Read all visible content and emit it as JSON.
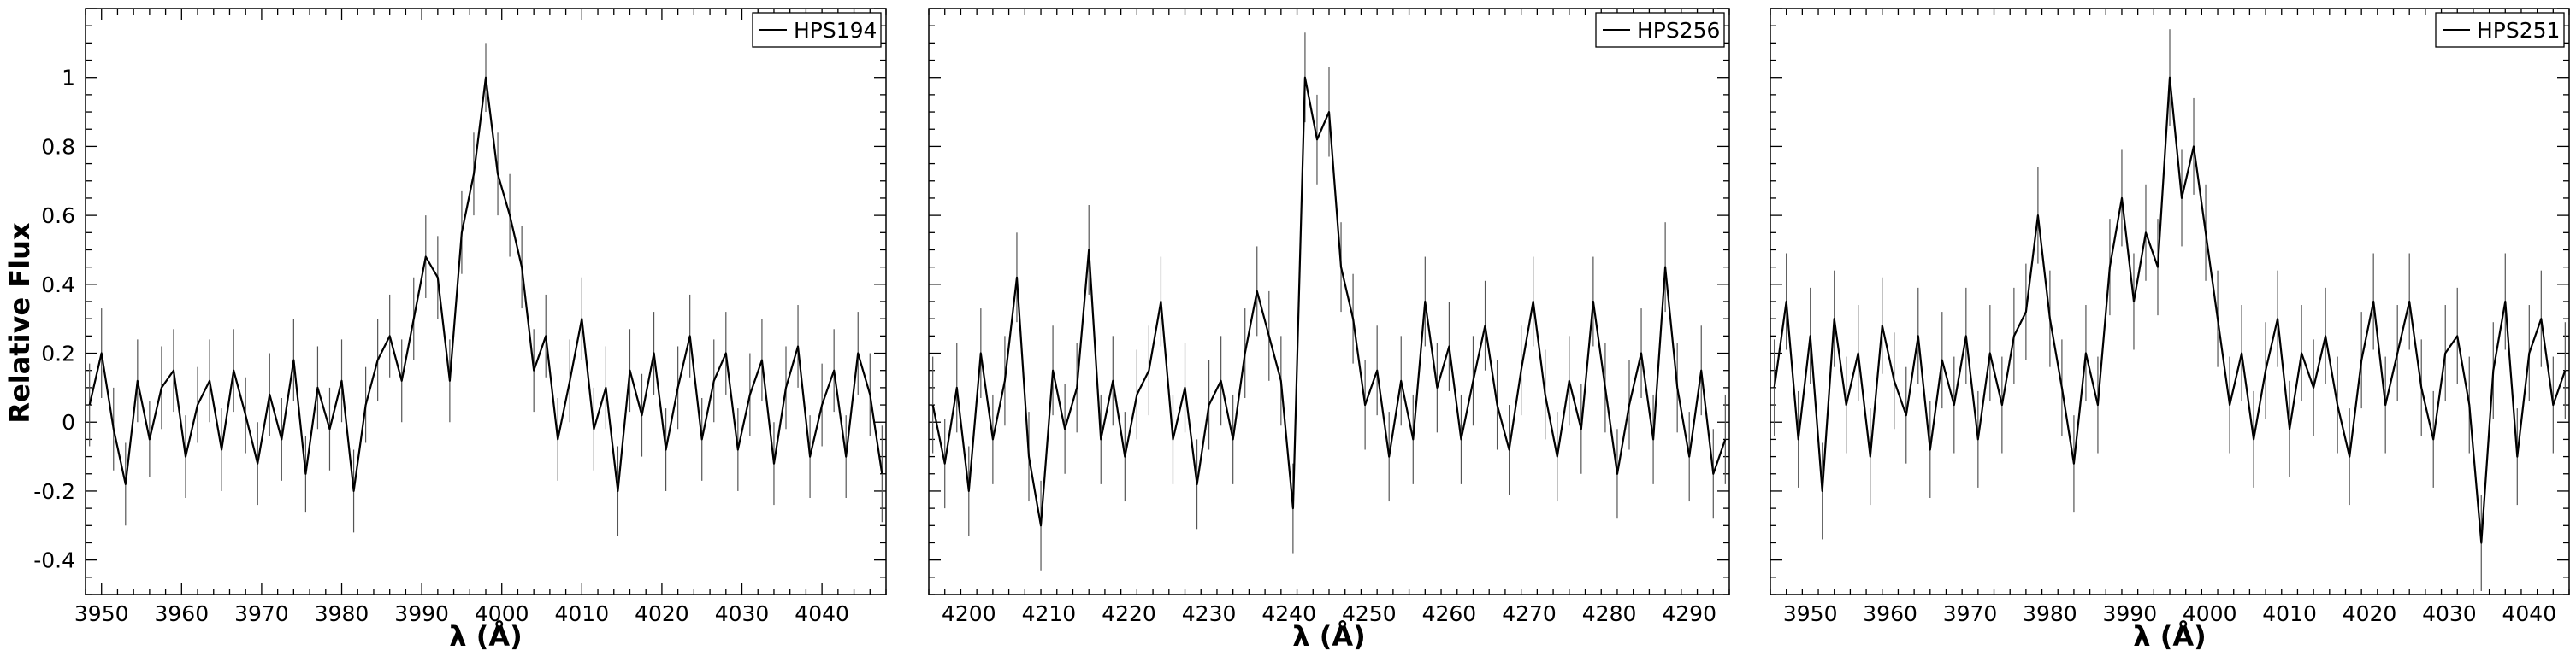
{
  "figure": {
    "ylabel": "Relative Flux"
  },
  "chart_data": [
    {
      "type": "line",
      "legend": "HPS194",
      "legend_position": "top-right",
      "xlabel": "λ (Å)",
      "ylabel": "Relative Flux",
      "xlim": [
        3948,
        4048
      ],
      "ylim": [
        -0.5,
        1.2
      ],
      "xticks": [
        3950,
        3960,
        3970,
        3980,
        3990,
        4000,
        4010,
        4020,
        4030,
        4040
      ],
      "yticks": [
        -0.4,
        -0.2,
        0,
        0.2,
        0.4,
        0.6,
        0.8,
        1
      ],
      "ytick_labels": [
        "-0.4",
        "-0.2",
        "0",
        "0.2",
        "0.4",
        "0.6",
        "0.8",
        "1"
      ],
      "error_bars": true,
      "series": [
        {
          "x": [
            3948.5,
            3950,
            3951.5,
            3953,
            3954.5,
            3956,
            3957.5,
            3959,
            3960.5,
            3962,
            3963.5,
            3965,
            3966.5,
            3968,
            3969.5,
            3971,
            3972.5,
            3974,
            3975.5,
            3977,
            3978.5,
            3980,
            3981.5,
            3983,
            3984.5,
            3986,
            3987.5,
            3989,
            3990.5,
            3992,
            3993.5,
            3995,
            3996.5,
            3998,
            3999.5,
            4001,
            4002.5,
            4004,
            4005.5,
            4007,
            4008.5,
            4010,
            4011.5,
            4013,
            4014.5,
            4016,
            4017.5,
            4019,
            4020.5,
            4022,
            4023.5,
            4025,
            4026.5,
            4028,
            4029.5,
            4031,
            4032.5,
            4034,
            4035.5,
            4037,
            4038.5,
            4040,
            4041.5,
            4043,
            4044.5,
            4046,
            4047.5
          ],
          "y": [
            0.05,
            0.2,
            -0.02,
            -0.18,
            0.12,
            -0.05,
            0.1,
            0.15,
            -0.1,
            0.05,
            0.12,
            -0.08,
            0.15,
            0.02,
            -0.12,
            0.08,
            -0.05,
            0.18,
            -0.15,
            0.1,
            -0.02,
            0.12,
            -0.2,
            0.05,
            0.18,
            0.25,
            0.12,
            0.3,
            0.48,
            0.42,
            0.12,
            0.55,
            0.72,
            1.0,
            0.72,
            0.6,
            0.45,
            0.15,
            0.25,
            -0.05,
            0.12,
            0.3,
            -0.02,
            0.1,
            -0.2,
            0.15,
            0.02,
            0.2,
            -0.08,
            0.1,
            0.25,
            -0.05,
            0.12,
            0.2,
            -0.08,
            0.08,
            0.18,
            -0.12,
            0.1,
            0.22,
            -0.1,
            0.05,
            0.15,
            -0.1,
            0.2,
            0.08,
            -0.15
          ],
          "err": [
            0.12,
            0.13,
            0.12,
            0.12,
            0.12,
            0.11,
            0.12,
            0.12,
            0.12,
            0.11,
            0.12,
            0.12,
            0.12,
            0.11,
            0.12,
            0.12,
            0.12,
            0.12,
            0.11,
            0.12,
            0.12,
            0.12,
            0.12,
            0.11,
            0.12,
            0.12,
            0.12,
            0.12,
            0.12,
            0.12,
            0.12,
            0.12,
            0.12,
            0.1,
            0.12,
            0.12,
            0.12,
            0.12,
            0.12,
            0.12,
            0.12,
            0.12,
            0.12,
            0.12,
            0.13,
            0.12,
            0.12,
            0.12,
            0.12,
            0.12,
            0.12,
            0.12,
            0.12,
            0.12,
            0.12,
            0.12,
            0.12,
            0.12,
            0.12,
            0.12,
            0.12,
            0.12,
            0.12,
            0.12,
            0.12,
            0.12,
            0.14
          ]
        }
      ]
    },
    {
      "type": "line",
      "legend": "HPS256",
      "legend_position": "top-right",
      "xlabel": "λ (Å)",
      "xlim": [
        4195,
        4295
      ],
      "ylim": [
        -0.5,
        1.2
      ],
      "xticks": [
        4200,
        4210,
        4220,
        4230,
        4240,
        4250,
        4260,
        4270,
        4280,
        4290
      ],
      "yticks": [
        -0.4,
        -0.2,
        0,
        0.2,
        0.4,
        0.6,
        0.8,
        1
      ],
      "error_bars": true,
      "series": [
        {
          "x": [
            4195.5,
            4197,
            4198.5,
            4200,
            4201.5,
            4203,
            4204.5,
            4206,
            4207.5,
            4209,
            4210.5,
            4212,
            4213.5,
            4215,
            4216.5,
            4218,
            4219.5,
            4221,
            4222.5,
            4224,
            4225.5,
            4227,
            4228.5,
            4230,
            4231.5,
            4233,
            4234.5,
            4236,
            4237.5,
            4239,
            4240.5,
            4242,
            4243.5,
            4245,
            4246.5,
            4248,
            4249.5,
            4251,
            4252.5,
            4254,
            4255.5,
            4257,
            4258.5,
            4260,
            4261.5,
            4263,
            4264.5,
            4266,
            4267.5,
            4269,
            4270.5,
            4272,
            4273.5,
            4275,
            4276.5,
            4278,
            4279.5,
            4281,
            4282.5,
            4284,
            4285.5,
            4287,
            4288.5,
            4290,
            4291.5,
            4293,
            4294.5
          ],
          "y": [
            0.05,
            -0.12,
            0.1,
            -0.2,
            0.2,
            -0.05,
            0.12,
            0.42,
            -0.1,
            -0.3,
            0.15,
            -0.02,
            0.1,
            0.5,
            -0.05,
            0.12,
            -0.1,
            0.08,
            0.15,
            0.35,
            -0.05,
            0.1,
            -0.18,
            0.05,
            0.12,
            -0.05,
            0.2,
            0.38,
            0.25,
            0.12,
            -0.25,
            1.0,
            0.82,
            0.9,
            0.45,
            0.3,
            0.05,
            0.15,
            -0.1,
            0.12,
            -0.05,
            0.35,
            0.1,
            0.22,
            -0.05,
            0.12,
            0.28,
            0.05,
            -0.08,
            0.15,
            0.35,
            0.08,
            -0.1,
            0.12,
            -0.02,
            0.35,
            0.1,
            -0.15,
            0.05,
            0.2,
            -0.05,
            0.45,
            0.1,
            -0.1,
            0.15,
            -0.15,
            -0.05
          ],
          "err": [
            0.14,
            0.13,
            0.13,
            0.13,
            0.13,
            0.13,
            0.13,
            0.13,
            0.13,
            0.13,
            0.13,
            0.13,
            0.13,
            0.13,
            0.13,
            0.13,
            0.13,
            0.13,
            0.13,
            0.13,
            0.13,
            0.13,
            0.13,
            0.13,
            0.13,
            0.13,
            0.13,
            0.13,
            0.13,
            0.13,
            0.13,
            0.13,
            0.13,
            0.13,
            0.13,
            0.13,
            0.13,
            0.13,
            0.13,
            0.13,
            0.13,
            0.13,
            0.13,
            0.13,
            0.13,
            0.13,
            0.13,
            0.13,
            0.13,
            0.13,
            0.13,
            0.13,
            0.13,
            0.13,
            0.13,
            0.13,
            0.13,
            0.13,
            0.13,
            0.13,
            0.13,
            0.13,
            0.13,
            0.13,
            0.13,
            0.13,
            0.13
          ]
        }
      ]
    },
    {
      "type": "line",
      "legend": "HPS251",
      "legend_position": "top-right",
      "xlabel": "λ (Å)",
      "xlim": [
        3945,
        4045
      ],
      "ylim": [
        -0.5,
        1.2
      ],
      "xticks": [
        3950,
        3960,
        3970,
        3980,
        3990,
        4000,
        4010,
        4020,
        4030,
        4040
      ],
      "yticks": [
        -0.4,
        -0.2,
        0,
        0.2,
        0.4,
        0.6,
        0.8,
        1
      ],
      "error_bars": true,
      "series": [
        {
          "x": [
            3945.5,
            3947,
            3948.5,
            3950,
            3951.5,
            3953,
            3954.5,
            3956,
            3957.5,
            3959,
            3960.5,
            3962,
            3963.5,
            3965,
            3966.5,
            3968,
            3969.5,
            3971,
            3972.5,
            3974,
            3975.5,
            3977,
            3978.5,
            3980,
            3981.5,
            3983,
            3984.5,
            3986,
            3987.5,
            3989,
            3990.5,
            3992,
            3993.5,
            3995,
            3996.5,
            3998,
            3999.5,
            4001,
            4002.5,
            4004,
            4005.5,
            4007,
            4008.5,
            4010,
            4011.5,
            4013,
            4014.5,
            4016,
            4017.5,
            4019,
            4020.5,
            4022,
            4023.5,
            4025,
            4026.5,
            4028,
            4029.5,
            4031,
            4032.5,
            4034,
            4035.5,
            4037,
            4038.5,
            4040,
            4041.5,
            4043,
            4044.5
          ],
          "y": [
            0.1,
            0.35,
            -0.05,
            0.25,
            -0.2,
            0.3,
            0.05,
            0.2,
            -0.1,
            0.28,
            0.12,
            0.02,
            0.25,
            -0.08,
            0.18,
            0.05,
            0.25,
            -0.05,
            0.2,
            0.05,
            0.25,
            0.32,
            0.6,
            0.3,
            0.1,
            -0.12,
            0.2,
            0.05,
            0.45,
            0.65,
            0.35,
            0.55,
            0.45,
            1.0,
            0.65,
            0.8,
            0.55,
            0.3,
            0.05,
            0.2,
            -0.05,
            0.15,
            0.3,
            -0.02,
            0.2,
            0.1,
            0.25,
            0.05,
            -0.1,
            0.18,
            0.35,
            0.05,
            0.2,
            0.35,
            0.1,
            -0.05,
            0.2,
            0.25,
            0.05,
            -0.35,
            0.15,
            0.35,
            -0.1,
            0.2,
            0.3,
            0.05,
            0.15
          ],
          "err": [
            0.14,
            0.14,
            0.14,
            0.14,
            0.14,
            0.14,
            0.14,
            0.14,
            0.14,
            0.14,
            0.14,
            0.14,
            0.14,
            0.14,
            0.14,
            0.14,
            0.14,
            0.14,
            0.14,
            0.14,
            0.14,
            0.14,
            0.14,
            0.14,
            0.14,
            0.14,
            0.14,
            0.14,
            0.14,
            0.14,
            0.14,
            0.14,
            0.14,
            0.14,
            0.14,
            0.14,
            0.14,
            0.14,
            0.14,
            0.14,
            0.14,
            0.14,
            0.14,
            0.14,
            0.14,
            0.14,
            0.14,
            0.14,
            0.14,
            0.14,
            0.14,
            0.14,
            0.14,
            0.14,
            0.14,
            0.14,
            0.14,
            0.14,
            0.14,
            0.14,
            0.14,
            0.14,
            0.14,
            0.14,
            0.14,
            0.14,
            0.14
          ]
        }
      ]
    }
  ]
}
